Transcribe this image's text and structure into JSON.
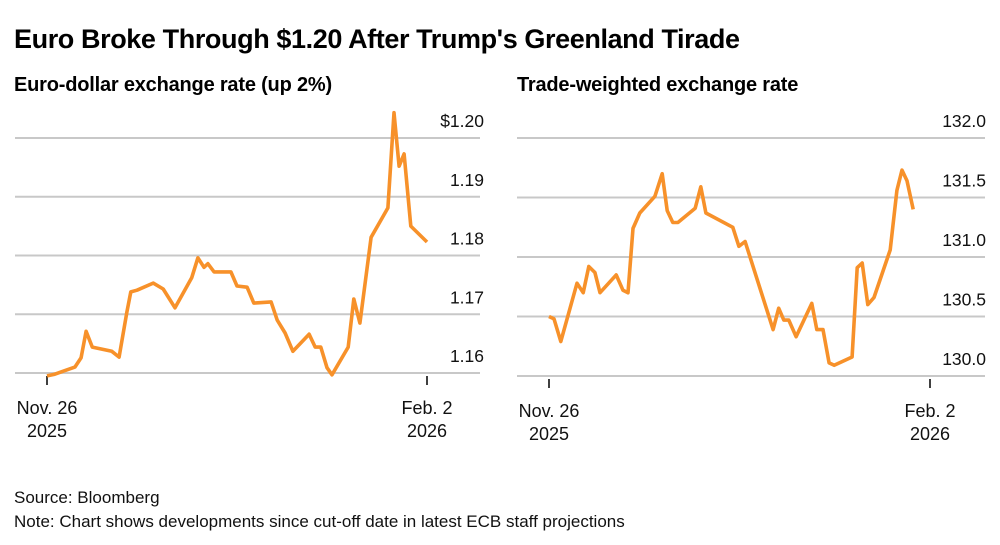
{
  "title": "Euro Broke Through $1.20 After Trump's Greenland Tirade",
  "source": "Source: Bloomberg",
  "note": "Note: Chart shows developments since cut-off date in latest ECB staff projections",
  "chart_data": [
    {
      "type": "line",
      "title": "Euro-dollar exchange rate (up 2%)",
      "xlabel": "",
      "ylabel": "",
      "x_unit": "days since Nov. 26, 2025",
      "xlim": [
        0,
        68
      ],
      "ylim": [
        1.16,
        1.2
      ],
      "yticks": [
        1.16,
        1.17,
        1.18,
        1.19,
        1.2
      ],
      "ytick_labels": [
        "1.16",
        "1.17",
        "1.18",
        "1.19",
        "$1.20"
      ],
      "xticks": [
        {
          "x": 0,
          "label_line1": "Nov. 26",
          "label_line2": "2025"
        },
        {
          "x": 68,
          "label_line1": "Feb. 2",
          "label_line2": "2026"
        }
      ],
      "grid": true,
      "color": "#f7912a",
      "series": [
        {
          "name": "EUR/USD",
          "x": [
            0,
            1.4,
            2.9,
            5.0,
            6.1,
            7.0,
            8.1,
            11.6,
            12.9,
            14.3,
            15.0,
            16.1,
            19.0,
            20.8,
            22.9,
            25.9,
            27.0,
            28.1,
            28.8,
            29.9,
            32.9,
            34.0,
            35.8,
            37.0,
            40.1,
            41.2,
            42.6,
            44.0,
            46.9,
            48.0,
            49.0,
            50.1,
            51.0,
            53.9,
            54.9,
            56.0,
            58.0,
            61.0,
            62.1,
            63.0,
            63.9,
            65.1,
            68.0
          ],
          "values": [
            1.1595,
            1.1598,
            1.1603,
            1.161,
            1.1626,
            1.1671,
            1.1644,
            1.1637,
            1.1627,
            1.1704,
            1.1738,
            1.1741,
            1.1753,
            1.1743,
            1.1711,
            1.1762,
            1.1796,
            1.178,
            1.1786,
            1.1772,
            1.1772,
            1.1748,
            1.1746,
            1.1719,
            1.1721,
            1.169,
            1.1668,
            1.1637,
            1.1666,
            1.1644,
            1.1644,
            1.1609,
            1.1597,
            1.1644,
            1.1726,
            1.1685,
            1.1831,
            1.1881,
            1.2043,
            1.1952,
            1.1973,
            1.185,
            1.1823
          ]
        }
      ]
    },
    {
      "type": "line",
      "title": "Trade-weighted exchange rate",
      "xlabel": "",
      "ylabel": "",
      "x_unit": "days since Nov. 26, 2025",
      "xlim": [
        0,
        68
      ],
      "ylim": [
        130.0,
        132.0
      ],
      "yticks": [
        130.0,
        130.5,
        131.0,
        131.5,
        132.0
      ],
      "ytick_labels": [
        "130.0",
        "130.5",
        "131.0",
        "131.5",
        "132.0"
      ],
      "xticks": [
        {
          "x": 0,
          "label_line1": "Nov. 26",
          "label_line2": "2025"
        },
        {
          "x": 68,
          "label_line1": "Feb. 2",
          "label_line2": "2026"
        }
      ],
      "grid": true,
      "color": "#f7912a",
      "series": [
        {
          "name": "Trade-weighted euro",
          "x": [
            0,
            0.9,
            2.1,
            5.0,
            6.1,
            7.1,
            8.2,
            9.1,
            12.0,
            13.2,
            14.1,
            15.0,
            16.2,
            18.9,
            20.2,
            21.1,
            22.1,
            23.0,
            26.1,
            27.1,
            28.0,
            32.8,
            33.9,
            35.0,
            40.0,
            41.0,
            41.9,
            42.8,
            44.1,
            46.9,
            47.8,
            48.9,
            50.0,
            50.9,
            54.1,
            55.0,
            55.9,
            56.9,
            58.0,
            60.9,
            62.1,
            63.0,
            63.9,
            65.0
          ],
          "values": [
            130.5,
            130.48,
            130.29,
            130.78,
            130.7,
            130.92,
            130.87,
            130.7,
            130.85,
            130.72,
            130.7,
            131.24,
            131.37,
            131.51,
            131.7,
            131.39,
            131.29,
            131.29,
            131.41,
            131.59,
            131.37,
            131.25,
            131.09,
            131.13,
            130.39,
            130.57,
            130.47,
            130.47,
            130.33,
            130.61,
            130.39,
            130.39,
            130.11,
            130.09,
            130.16,
            130.91,
            130.95,
            130.6,
            130.66,
            131.06,
            131.56,
            131.73,
            131.64,
            131.4
          ]
        }
      ]
    }
  ]
}
